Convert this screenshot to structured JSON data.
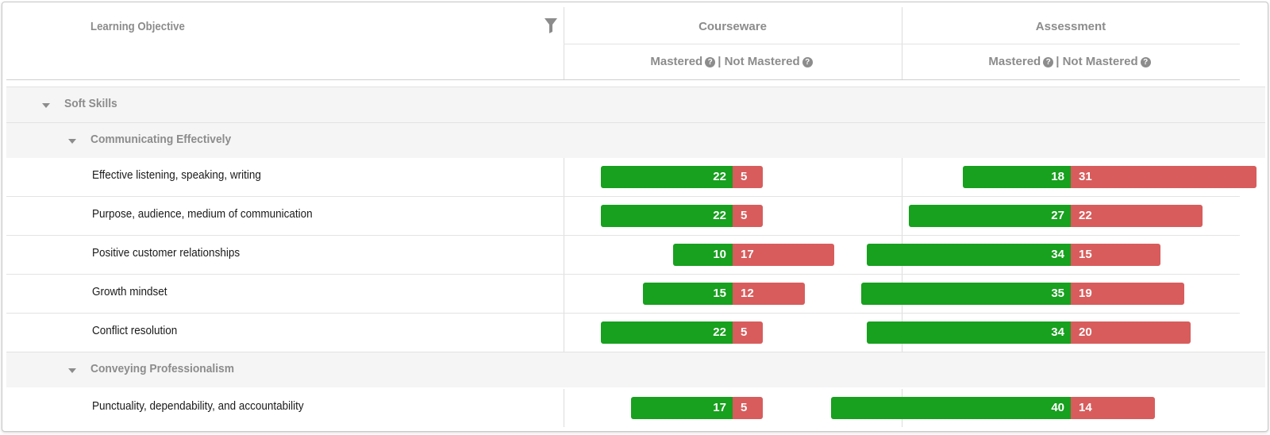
{
  "header": {
    "objective_label": "Learning Objective",
    "courseware_label": "Courseware",
    "assessment_label": "Assessment",
    "mastered_label": "Mastered",
    "separator": "|",
    "not_mastered_label": "Not Mastered",
    "help_glyph": "?",
    "filter_icon": "filter-icon"
  },
  "colors": {
    "mastered": "#18a01f",
    "not_mastered": "#d85c5c"
  },
  "groups": [
    {
      "label": "Soft Skills",
      "level": 1
    },
    {
      "label": "Communicating Effectively",
      "level": 2
    },
    {
      "label": "Conveying Professionalism",
      "level": 2
    }
  ],
  "rows": [
    {
      "label": "Effective listening, speaking, writing",
      "courseware": {
        "mastered": 22,
        "not_mastered": 5
      },
      "assessment": {
        "mastered": 18,
        "not_mastered": 31
      }
    },
    {
      "label": "Purpose, audience, medium of communication",
      "courseware": {
        "mastered": 22,
        "not_mastered": 5
      },
      "assessment": {
        "mastered": 27,
        "not_mastered": 22
      }
    },
    {
      "label": "Positive customer relationships",
      "courseware": {
        "mastered": 10,
        "not_mastered": 17
      },
      "assessment": {
        "mastered": 34,
        "not_mastered": 15
      }
    },
    {
      "label": "Growth mindset",
      "courseware": {
        "mastered": 15,
        "not_mastered": 12
      },
      "assessment": {
        "mastered": 35,
        "not_mastered": 19
      }
    },
    {
      "label": "Conflict resolution",
      "courseware": {
        "mastered": 22,
        "not_mastered": 5
      },
      "assessment": {
        "mastered": 34,
        "not_mastered": 20
      }
    },
    {
      "label": "Punctuality, dependability, and accountability",
      "courseware": {
        "mastered": 17,
        "not_mastered": 5
      },
      "assessment": {
        "mastered": 40,
        "not_mastered": 14
      }
    }
  ]
}
